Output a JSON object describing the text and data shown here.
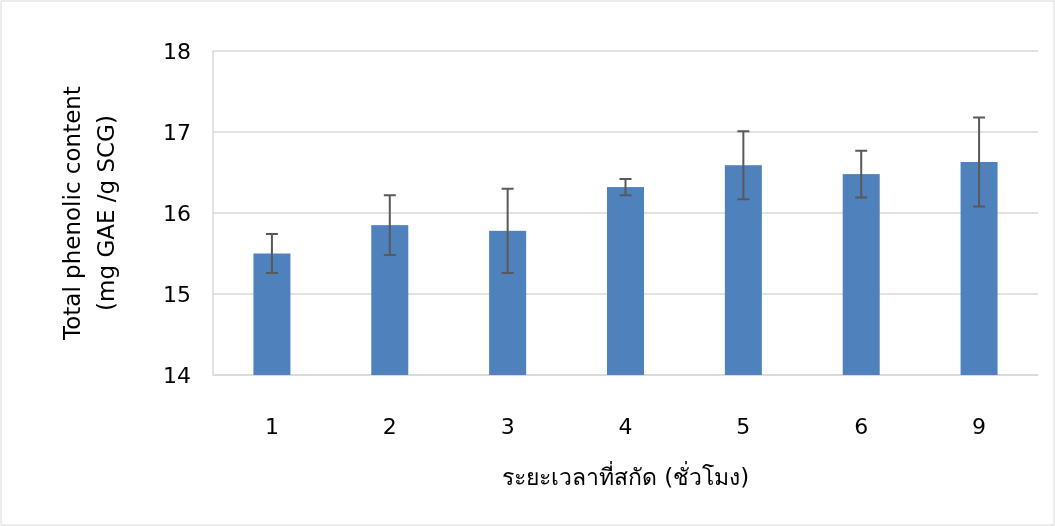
{
  "chart_data": {
    "type": "bar",
    "xlabel": "ระยะเวลาที่สกัด (ชั่วโมง)",
    "ylabel": "Total phenolic content\n(mg GAE /g SCG)",
    "categories": [
      "1",
      "2",
      "3",
      "4",
      "5",
      "6",
      "9"
    ],
    "values": [
      15.5,
      15.85,
      15.78,
      16.32,
      16.59,
      16.48,
      16.63
    ],
    "errors": [
      0.24,
      0.37,
      0.52,
      0.1,
      0.42,
      0.29,
      0.55
    ],
    "color": "#4f81bd",
    "ylim": [
      14,
      18
    ],
    "yticks": [
      14,
      15,
      16,
      17,
      18
    ],
    "grid": "y"
  }
}
